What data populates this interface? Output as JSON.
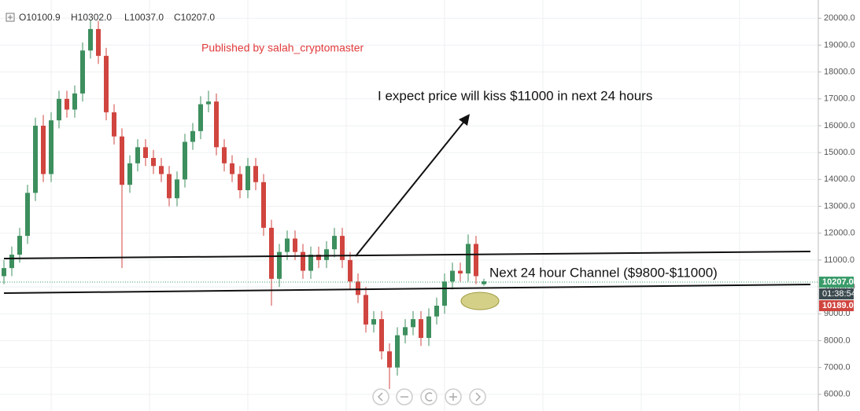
{
  "header": {
    "ohlc": [
      "O10100.9",
      "H10302.0",
      "L10037.0",
      "C10207.0"
    ]
  },
  "publisher": "Published by salah_cryptomaster",
  "annotation": "I expect price will kiss $11000 in next 24 hours",
  "channel_label": "Next 24 hour Channel ($9800-$11000)",
  "price_labels": [
    "10207.0",
    "01:38:54",
    "10189.0"
  ],
  "chart_data": {
    "type": "candlestick",
    "up_color": "#3d8f5e",
    "down_color": "#d0453f",
    "grid": true,
    "ylim": [
      5380,
      20680
    ],
    "yticks": [
      {
        "value": 6000,
        "label": "6000.0"
      },
      {
        "value": 7000,
        "label": "7000.0"
      },
      {
        "value": 8000,
        "label": "8000.0"
      },
      {
        "value": 9000,
        "label": "9000.0"
      },
      {
        "value": 10000,
        "label": "10000.0"
      },
      {
        "value": 11000,
        "label": "11000.0"
      },
      {
        "value": 12000,
        "label": "12000.0"
      },
      {
        "value": 13000,
        "label": "13000.0"
      },
      {
        "value": 14000,
        "label": "14000.0"
      },
      {
        "value": 15000,
        "label": "15000.0"
      },
      {
        "value": 16000,
        "label": "16000.0"
      },
      {
        "value": 17000,
        "label": "17000.0"
      },
      {
        "value": 18000,
        "label": "18000.0"
      },
      {
        "value": 19000,
        "label": "19000.0"
      },
      {
        "value": 20000,
        "label": "20000.0"
      }
    ],
    "open": [
      10400,
      10700,
      11200,
      11900,
      13500,
      16000,
      14200,
      16200,
      17000,
      16600,
      17200,
      18800,
      19600,
      18600,
      16500,
      15600,
      13800,
      14600,
      15200,
      14800,
      14500,
      14200,
      13300,
      14000,
      15400,
      15800,
      16800,
      16900,
      15200,
      14600,
      14200,
      13600,
      14500,
      13900,
      12200,
      10300,
      11300,
      11800,
      11300,
      10600,
      11200,
      11000,
      11400,
      11900,
      11000,
      10200,
      9700,
      8600,
      8800,
      7600,
      7000,
      8200,
      8500,
      8800,
      8100,
      8900,
      9300,
      10200,
      10600,
      10500,
      11600,
      10100.9
    ],
    "high": [
      11000,
      11500,
      12200,
      13800,
      16300,
      16400,
      16500,
      17300,
      17300,
      17500,
      19100,
      19950,
      19900,
      18900,
      16800,
      15900,
      14900,
      15500,
      15500,
      15100,
      14800,
      14500,
      14300,
      15700,
      16100,
      17100,
      17300,
      17200,
      15500,
      14900,
      14500,
      14800,
      14800,
      14200,
      12500,
      11600,
      12100,
      12100,
      11600,
      11500,
      11500,
      11700,
      12200,
      12200,
      11300,
      10500,
      10000,
      9100,
      9100,
      7900,
      8500,
      8800,
      9100,
      9100,
      9200,
      9600,
      10500,
      10900,
      10900,
      11950,
      11900,
      10302
    ],
    "low": [
      10100,
      10400,
      10900,
      11600,
      13200,
      13900,
      13900,
      15900,
      16300,
      16300,
      16900,
      18500,
      18300,
      16200,
      15300,
      10700,
      13500,
      14300,
      14500,
      14200,
      13900,
      13000,
      13000,
      13700,
      15100,
      15500,
      16500,
      14900,
      14300,
      13900,
      13300,
      13300,
      13600,
      11900,
      9300,
      10000,
      11000,
      11000,
      10300,
      10300,
      10700,
      10700,
      11100,
      10700,
      9900,
      9400,
      8300,
      8300,
      7300,
      6200,
      6700,
      7900,
      8200,
      7800,
      7800,
      8600,
      9000,
      9900,
      10200,
      10200,
      10100,
      10037
    ],
    "close": [
      10700,
      11200,
      11900,
      13500,
      16000,
      14200,
      16200,
      17000,
      16600,
      17200,
      18800,
      19600,
      18600,
      16500,
      15600,
      13800,
      14600,
      15200,
      14800,
      14500,
      14200,
      13300,
      14000,
      15400,
      15800,
      16800,
      16900,
      15200,
      14600,
      14200,
      13600,
      14500,
      13900,
      12200,
      10300,
      11300,
      11800,
      11300,
      10600,
      11200,
      11000,
      11400,
      11900,
      11000,
      10200,
      9700,
      8600,
      8800,
      7600,
      7000,
      8200,
      8500,
      8800,
      8100,
      8900,
      9300,
      10200,
      10600,
      10500,
      11600,
      10400,
      10207
    ]
  }
}
